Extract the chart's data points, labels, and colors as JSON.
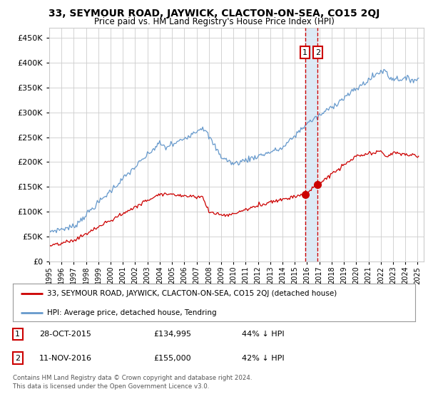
{
  "title": "33, SEYMOUR ROAD, JAYWICK, CLACTON-ON-SEA, CO15 2QJ",
  "subtitle": "Price paid vs. HM Land Registry's House Price Index (HPI)",
  "legend_label_red": "33, SEYMOUR ROAD, JAYWICK, CLACTON-ON-SEA, CO15 2QJ (detached house)",
  "legend_label_blue": "HPI: Average price, detached house, Tendring",
  "annotation1_date": "28-OCT-2015",
  "annotation1_price": "£134,995",
  "annotation1_text": "44% ↓ HPI",
  "annotation2_date": "11-NOV-2016",
  "annotation2_price": "£155,000",
  "annotation2_text": "42% ↓ HPI",
  "footer": "Contains HM Land Registry data © Crown copyright and database right 2024.\nThis data is licensed under the Open Government Licence v3.0.",
  "sale1_year": 2015.83,
  "sale1_value_red": 134995,
  "sale2_year": 2016.87,
  "sale2_value_red": 155000,
  "ylim": [
    0,
    470000
  ],
  "xlim_start": 1995.0,
  "xlim_end": 2025.5,
  "red_color": "#cc0000",
  "blue_color": "#6699cc",
  "grid_color": "#cccccc",
  "bg_color": "#ffffff",
  "sale_highlight_color": "#ddeaf5"
}
